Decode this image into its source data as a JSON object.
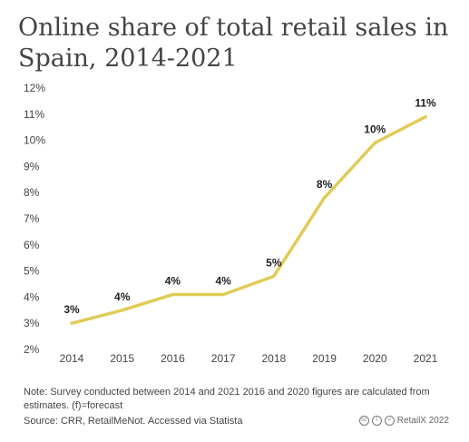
{
  "title": "Online share of total retail sales in Spain, 2014-2021",
  "note": "Note: Survey conducted between 2014 and 2021 2016 and 2020 figures are calculated from estimates. (f)=forecast",
  "source": "Source: CRR, RetailMeNot. Accessed via Statista",
  "brand": "RetailX 2022",
  "colors": {
    "line": "#e1cb57",
    "text": "#444444"
  },
  "chart_data": {
    "type": "line",
    "title": "Online share of total retail sales in Spain, 2014-2021",
    "categories": [
      "2014",
      "2015",
      "2016",
      "2017",
      "2018",
      "2019",
      "2020",
      "2021"
    ],
    "values": [
      3.0,
      3.5,
      4.1,
      4.1,
      4.8,
      7.8,
      9.9,
      10.9
    ],
    "data_labels": [
      "3%",
      "4%",
      "4%",
      "4%",
      "5%",
      "8%",
      "10%",
      "11%"
    ],
    "y_ticks": [
      "2%",
      "3%",
      "4%",
      "5%",
      "6%",
      "7%",
      "8%",
      "9%",
      "10%",
      "11%",
      "12%"
    ],
    "ylim": [
      2,
      12
    ],
    "xlabel": "",
    "ylabel": "",
    "grid": false,
    "legend": "none"
  }
}
